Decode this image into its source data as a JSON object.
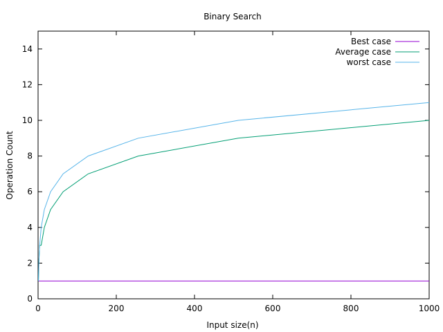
{
  "chart_data": {
    "type": "line",
    "title": "Binary Search",
    "xlabel": "Input size(n)",
    "ylabel": "Operation Count",
    "xlim": [
      0,
      1000
    ],
    "ylim": [
      0,
      15
    ],
    "xticks": [
      0,
      200,
      400,
      600,
      800,
      1000
    ],
    "yticks": [
      0,
      2,
      4,
      6,
      8,
      10,
      12,
      14
    ],
    "grid": false,
    "legend_position": "top-right",
    "series": [
      {
        "name": "Best case",
        "color": "#9400d3",
        "x": [
          1,
          2,
          4,
          8,
          16,
          32,
          64,
          128,
          256,
          512,
          1000
        ],
        "y": [
          1,
          1,
          1,
          1,
          1,
          1,
          1,
          1,
          1,
          1,
          1
        ]
      },
      {
        "name": "Average case",
        "color": "#009e73",
        "x": [
          1,
          2,
          4,
          8,
          16,
          32,
          64,
          128,
          256,
          512,
          1000
        ],
        "y": [
          1,
          2,
          3,
          3,
          4,
          5,
          6,
          7,
          8,
          9,
          10
        ]
      },
      {
        "name": "worst case",
        "color": "#56b4e9",
        "x": [
          1,
          2,
          4,
          8,
          16,
          32,
          64,
          128,
          256,
          512,
          1000
        ],
        "y": [
          1,
          2,
          3,
          4,
          5,
          6,
          7,
          8,
          9,
          10,
          11
        ]
      }
    ]
  }
}
